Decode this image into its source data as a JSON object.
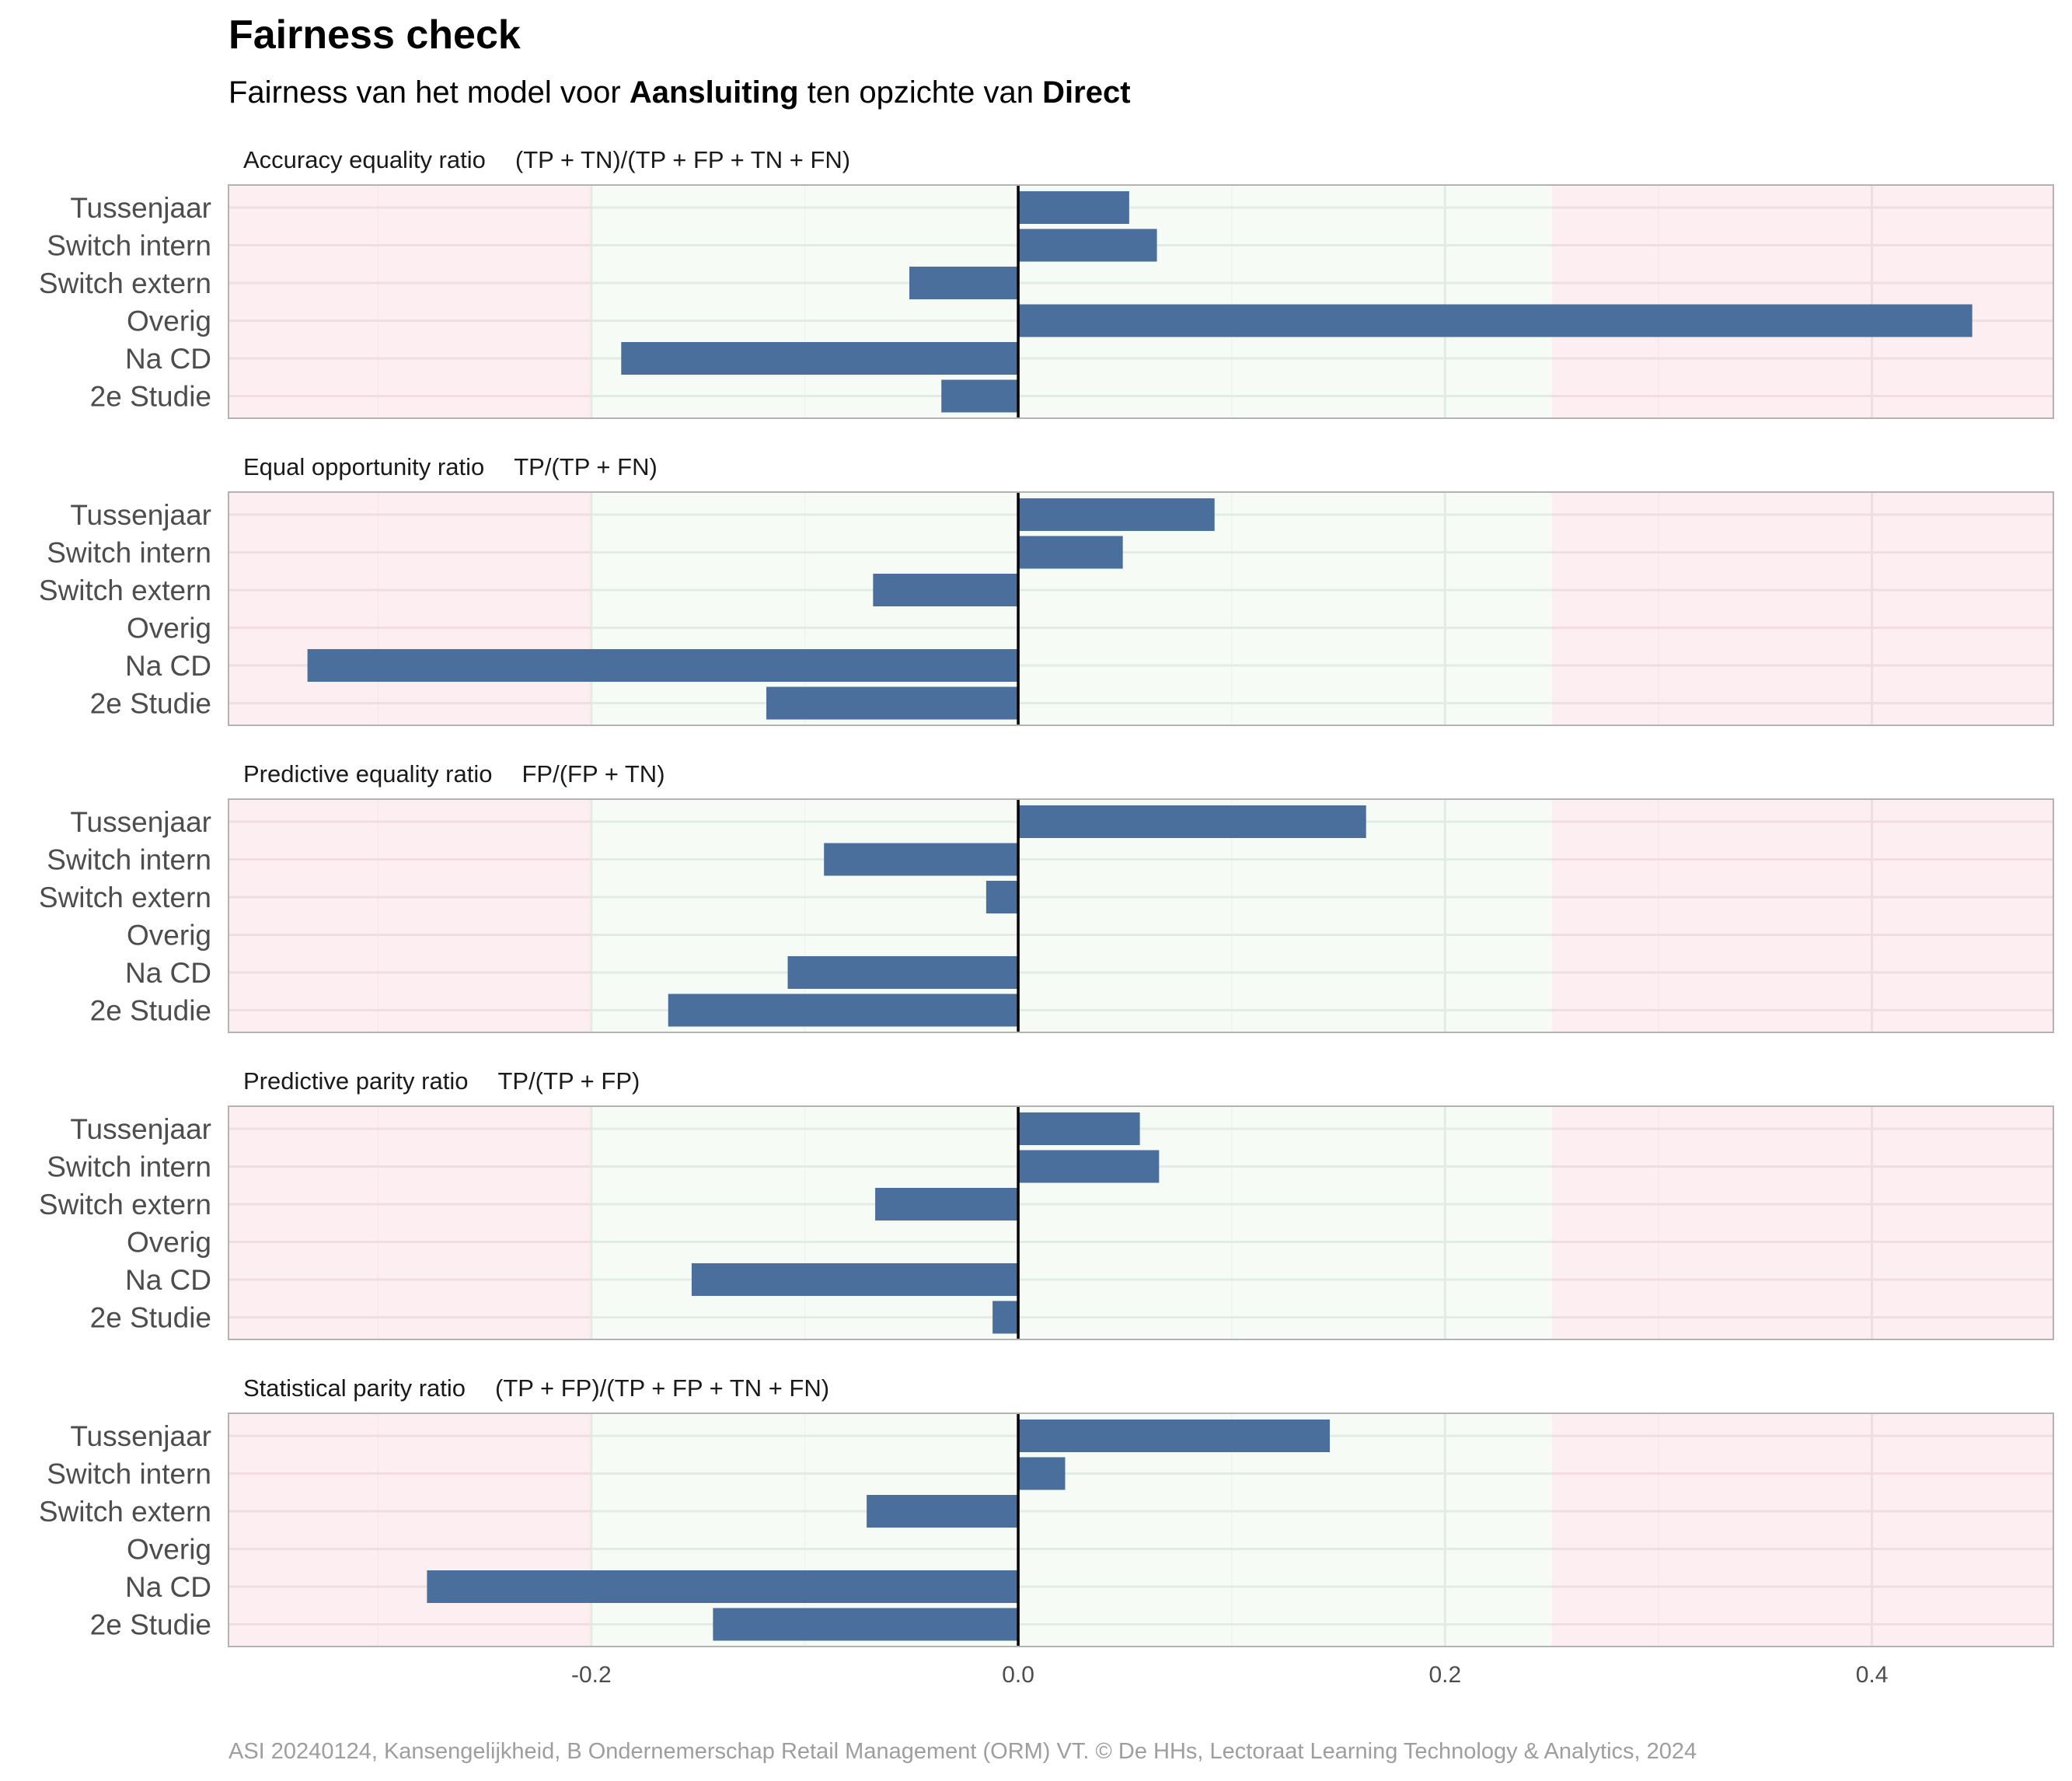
{
  "title": "Fairness check",
  "subtitle": {
    "prefix": "Fairness van het model voor ",
    "model": "Aansluiting",
    "middle": " ten opzichte van ",
    "reference": "Direct"
  },
  "caption": "ASI 20240124, Kansengelijkheid, B Ondernemerschap Retail Management (ORM) VT. © De HHs, Lectoraat Learning Technology & Analytics, 2024",
  "colors": {
    "bar": "#4a6f9c",
    "fair_band": "#f6fbf6",
    "unfair_band": "#fceef1",
    "grid_fair": "#e3ece4",
    "grid_unfair": "#efdde2",
    "zero_line": "#000000",
    "panel_border": "#b3b3b3"
  },
  "chart_data": {
    "type": "bar",
    "orientation": "horizontal",
    "categories": [
      "Tussenjaar",
      "Switch intern",
      "Switch extern",
      "Overig",
      "Na CD",
      "2e Studie"
    ],
    "xlim": [
      -0.37,
      0.485
    ],
    "xticks": [
      -0.2,
      0.0,
      0.2,
      0.4
    ],
    "xtick_labels": [
      "-0.2",
      "0.0",
      "0.2",
      "0.4"
    ],
    "fair_range": [
      -0.2,
      0.25
    ],
    "grid": true,
    "panels": [
      {
        "name": "Accuracy equality ratio",
        "formula": "(TP + TN)/(TP + FP + TN + FN)",
        "values": [
          0.052,
          0.065,
          -0.051,
          0.447,
          -0.186,
          -0.036
        ]
      },
      {
        "name": "Equal opportunity ratio",
        "formula": "TP/(TP + FN)",
        "values": [
          0.092,
          0.049,
          -0.068,
          null,
          -0.333,
          -0.118
        ]
      },
      {
        "name": "Predictive equality ratio",
        "formula": "FP/(FP + TN)",
        "values": [
          0.163,
          -0.091,
          -0.015,
          null,
          -0.108,
          -0.164
        ]
      },
      {
        "name": "Predictive parity ratio",
        "formula": "TP/(TP + FP)",
        "values": [
          0.057,
          0.066,
          -0.067,
          null,
          -0.153,
          -0.012
        ]
      },
      {
        "name": "Statistical parity ratio",
        "formula": "(TP + FP)/(TP + FP + TN + FN)",
        "values": [
          0.146,
          0.022,
          -0.071,
          null,
          -0.277,
          -0.143
        ]
      }
    ]
  }
}
